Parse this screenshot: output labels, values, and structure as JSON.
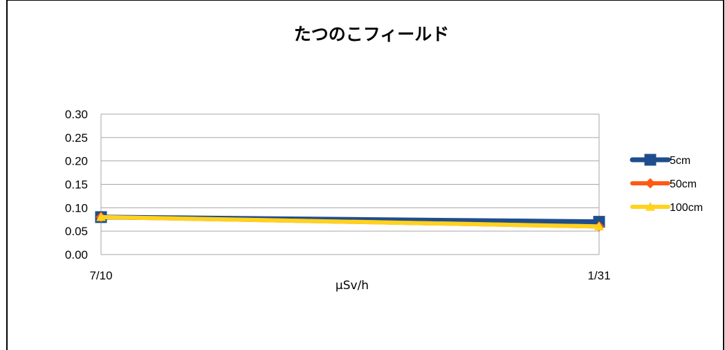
{
  "chart_data": {
    "type": "line",
    "title": "たつのこフィールド",
    "xlabel": "μSv/h",
    "ylabel": "",
    "categories": [
      "7/10",
      "1/31"
    ],
    "ylim": [
      0,
      0.3
    ],
    "yticks": [
      "0.00",
      "0.05",
      "0.10",
      "0.15",
      "0.20",
      "0.25",
      "0.30"
    ],
    "grid": true,
    "legend_position": "right",
    "series": [
      {
        "name": "5cm",
        "values": [
          0.08,
          0.07
        ],
        "color": "#1F4E8C",
        "marker": "square"
      },
      {
        "name": "50cm",
        "values": [
          0.08,
          0.06
        ],
        "color": "#FF5A14",
        "marker": "diamond"
      },
      {
        "name": "100cm",
        "values": [
          0.08,
          0.06
        ],
        "color": "#FFD21E",
        "marker": "triangle"
      }
    ]
  }
}
